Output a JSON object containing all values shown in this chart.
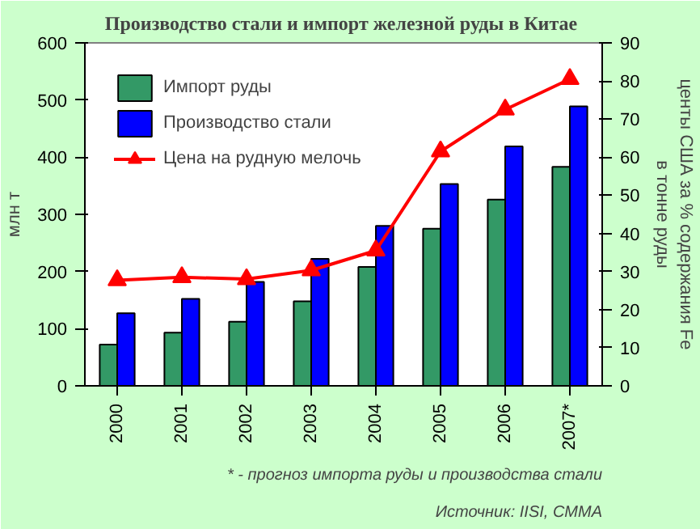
{
  "chart_data": {
    "type": "bar",
    "title": "Производство стали и импорт железной руды в  Китае",
    "categories": [
      "2000",
      "2001",
      "2002",
      "2003",
      "2004",
      "2005",
      "2006",
      "2007*"
    ],
    "series": [
      {
        "name": "Импорт руды",
        "color": "#339966",
        "values": [
          72,
          93,
          112,
          148,
          208,
          275,
          326,
          383
        ]
      },
      {
        "name": "Производство стали",
        "color": "#0000ff",
        "values": [
          127,
          152,
          182,
          222,
          280,
          353,
          419,
          489
        ]
      },
      {
        "name": "Цена на рудную мелочь",
        "type": "line",
        "axis": "y2",
        "color": "#ff0000",
        "marker": "triangle",
        "line_style": "solid",
        "values": [
          27.7,
          28.5,
          28.0,
          30.3,
          35.5,
          61.5,
          72.5,
          80.5
        ]
      }
    ],
    "ylabel": "млн т",
    "y2label": "центы США за % содержания Fe\nв тонне руды",
    "ylim": [
      0,
      600
    ],
    "yticks": [
      0,
      100,
      200,
      300,
      400,
      500,
      600
    ],
    "y2lim": [
      0,
      90
    ],
    "y2ticks": [
      0,
      10,
      20,
      30,
      40,
      50,
      60,
      70,
      80,
      90
    ],
    "grid": false,
    "legend": "top left",
    "annotations": [
      "* - прогноз импорта руды и производства стали",
      "Источник: IISI, CMMA"
    ]
  }
}
